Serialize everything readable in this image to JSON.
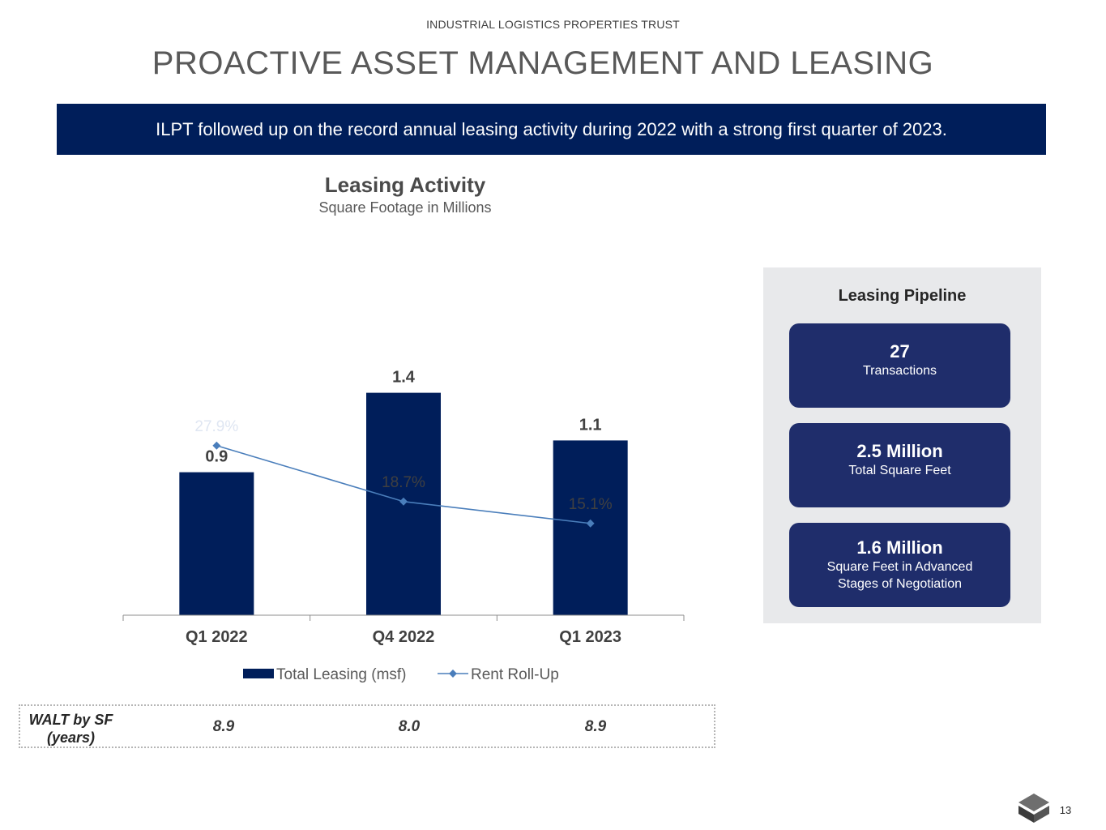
{
  "header": {
    "company": "INDUSTRIAL LOGISTICS PROPERTIES TRUST",
    "title": "PROACTIVE ASSET MANAGEMENT AND LEASING"
  },
  "banner": {
    "text": "ILPT followed up on the record annual leasing activity during 2022 with a strong first quarter of 2023."
  },
  "chart_data": {
    "type": "bar",
    "title": "Leasing Activity",
    "subtitle": "Square Footage in Millions",
    "categories": [
      "Q1 2022",
      "Q4 2022",
      "Q1 2023"
    ],
    "series": [
      {
        "name": "Total Leasing (msf)",
        "type": "bar",
        "values": [
          0.9,
          1.4,
          1.1
        ],
        "labels": [
          "0.9",
          "1.4",
          "1.1"
        ],
        "color": "#001e5a"
      },
      {
        "name": "Rent Roll-Up",
        "type": "line",
        "values": [
          27.9,
          18.7,
          15.1
        ],
        "labels": [
          "27.9%",
          "18.7%",
          "15.1%"
        ],
        "color": "#4a7ebb"
      }
    ],
    "ylim": [
      0,
      1.6
    ],
    "secondary_ylim": [
      0,
      40
    ],
    "xlabel": "",
    "ylabel": "",
    "grid": false,
    "legend": "bottom"
  },
  "walt": {
    "label": "WALT by SF\n(years)",
    "values": [
      "8.9",
      "8.0",
      "8.9"
    ]
  },
  "pipeline": {
    "title": "Leasing Pipeline",
    "cards": [
      {
        "value": "27",
        "label": "Transactions"
      },
      {
        "value": "2.5 Million",
        "label": "Total Square Feet"
      },
      {
        "value": "1.6 Million",
        "label": "Square Feet in Advanced\nStages of Negotiation"
      }
    ]
  },
  "footer": {
    "page_number": "13"
  },
  "colors": {
    "navy": "#001e5a",
    "line_blue": "#4a7ebb",
    "card": "#1f2d6b",
    "panel": "#e8e9eb"
  }
}
